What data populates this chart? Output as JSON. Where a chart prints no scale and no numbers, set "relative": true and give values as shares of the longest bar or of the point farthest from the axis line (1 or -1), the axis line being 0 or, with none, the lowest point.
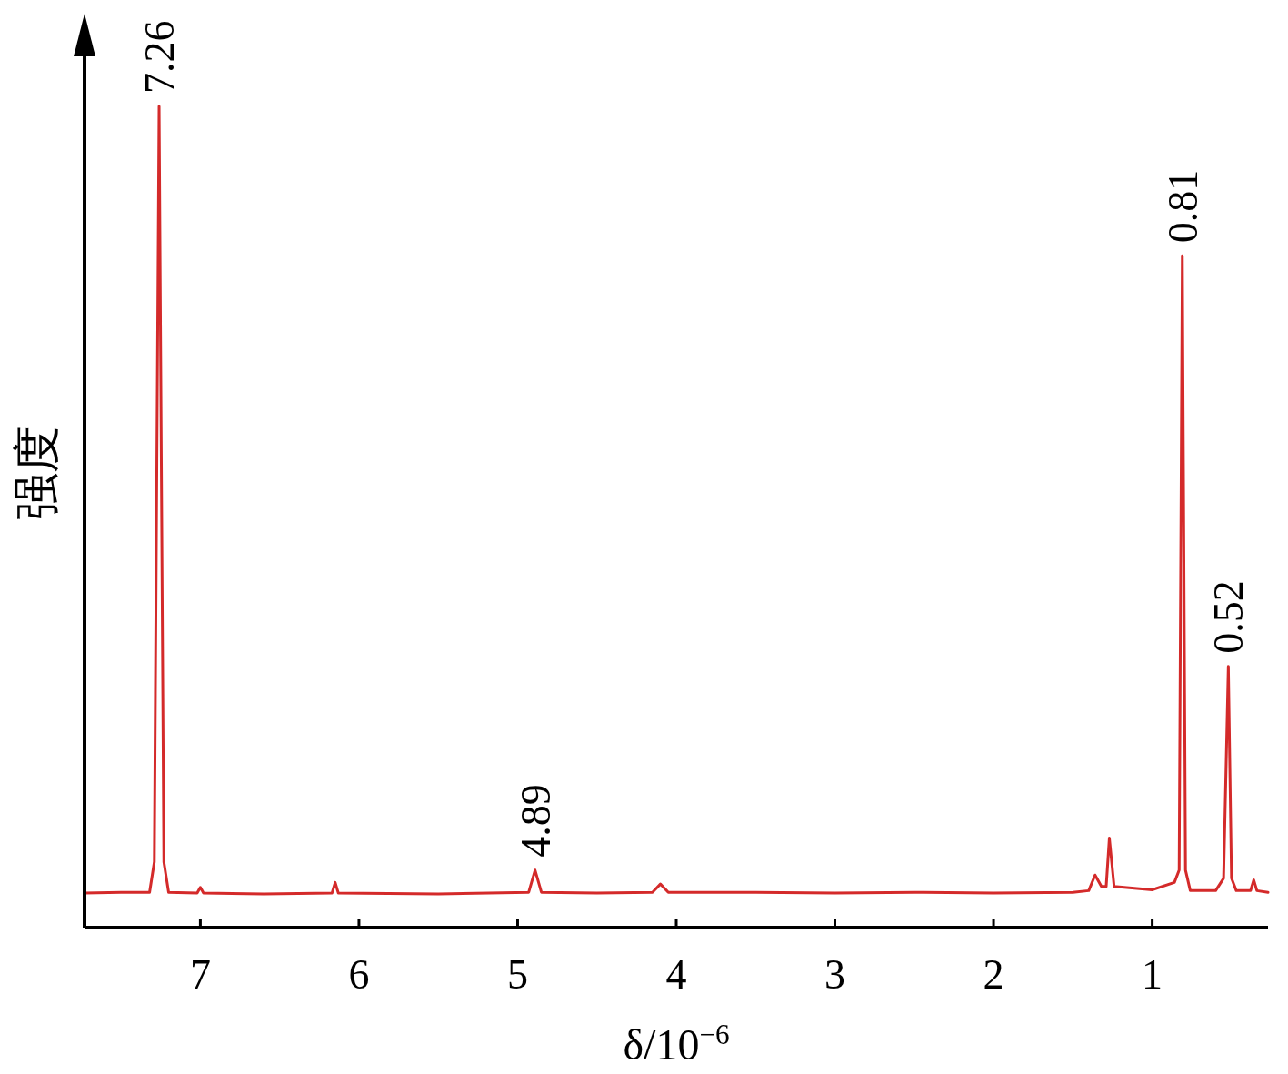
{
  "chart_data": {
    "type": "line",
    "relative": true,
    "xlabel": "δ/10$^{−6}$",
    "ylabel": "强度",
    "xlim": [
      7.73,
      0.27
    ],
    "xticks": [
      7,
      6,
      5,
      4,
      3,
      2,
      1
    ],
    "tick_labels": "x",
    "x": [
      7.73,
      7.5,
      7.32,
      7.29,
      7.26,
      7.23,
      7.2,
      7.02,
      7.0,
      6.98,
      6.6,
      6.17,
      6.15,
      6.13,
      5.5,
      4.93,
      4.89,
      4.85,
      4.5,
      4.15,
      4.1,
      4.05,
      3.5,
      3.0,
      2.5,
      2.0,
      1.5,
      1.4,
      1.36,
      1.32,
      1.29,
      1.27,
      1.24,
      1.0,
      0.86,
      0.83,
      0.81,
      0.79,
      0.76,
      0.6,
      0.55,
      0.52,
      0.5,
      0.47,
      0.38,
      0.36,
      0.34,
      0.27
    ],
    "series": [
      {
        "color": "#d42a2a",
        "values": [
          0.042,
          0.043,
          0.043,
          0.08,
          1.0,
          0.08,
          0.043,
          0.042,
          0.049,
          0.042,
          0.041,
          0.042,
          0.055,
          0.042,
          0.041,
          0.043,
          0.07,
          0.043,
          0.042,
          0.043,
          0.053,
          0.043,
          0.043,
          0.042,
          0.043,
          0.042,
          0.043,
          0.045,
          0.064,
          0.05,
          0.05,
          0.109,
          0.05,
          0.046,
          0.055,
          0.07,
          0.818,
          0.07,
          0.045,
          0.045,
          0.06,
          0.318,
          0.06,
          0.045,
          0.045,
          0.058,
          0.045,
          0.043
        ]
      }
    ],
    "annotations": [
      {
        "text": "7.26",
        "x": 7.26,
        "y": 1.0
      },
      {
        "text": "4.89",
        "x": 4.89,
        "y": 0.07
      },
      {
        "text": "0.81",
        "x": 0.81,
        "y": 0.818
      },
      {
        "text": "0.52",
        "x": 0.52,
        "y": 0.318
      }
    ]
  }
}
